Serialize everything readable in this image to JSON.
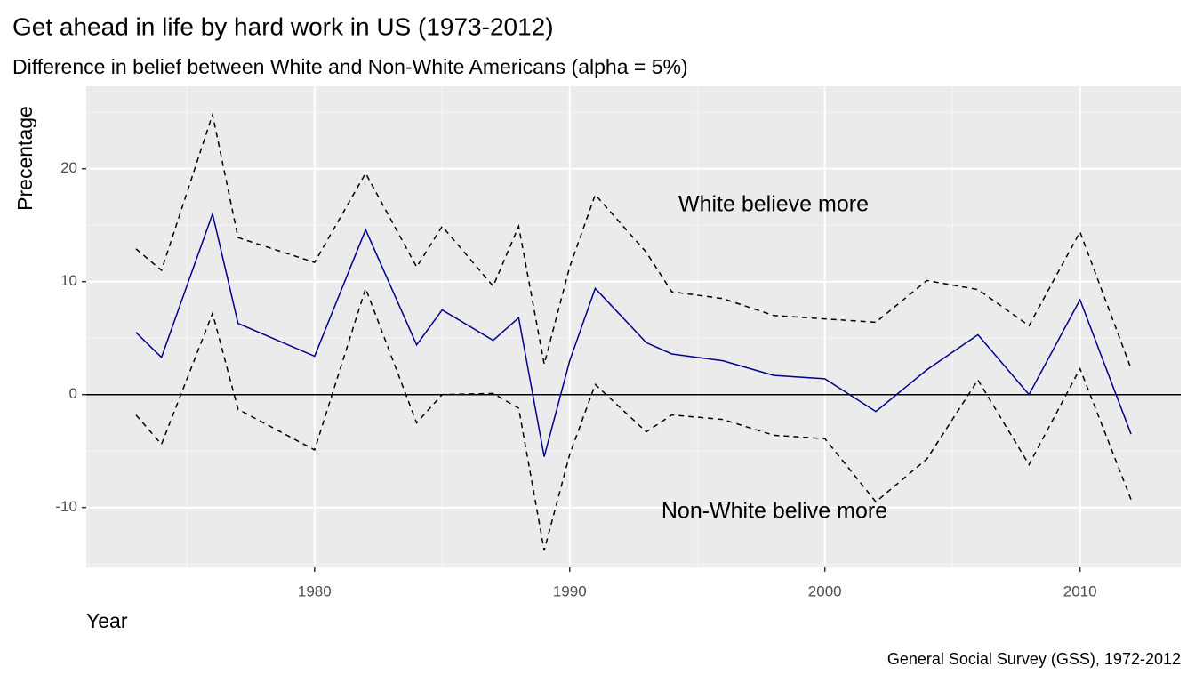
{
  "chart_data": {
    "type": "line",
    "title": "Get ahead in life by hard work in US (1973-2012)",
    "subtitle": "Difference in belief between White and Non-White Americans (alpha = 5%)",
    "x_label": "Year",
    "y_label": "Precentage",
    "caption": "General Social Survey (GSS), 1972-2012",
    "annotations": [
      "White believe more",
      "Non-White belive more"
    ],
    "x": [
      1973,
      1974,
      1976,
      1977,
      1980,
      1982,
      1984,
      1985,
      1987,
      1988,
      1989,
      1990,
      1991,
      1993,
      1994,
      1996,
      1998,
      2000,
      2002,
      2004,
      2006,
      2008,
      2010,
      2012
    ],
    "series": [
      {
        "color": "#00008b",
        "dash": "solid",
        "values": [
          5.5,
          3.3,
          16,
          6.3,
          3.4,
          14.6,
          4.4,
          7.5,
          4.8,
          6.8,
          -5.5,
          3,
          9.4,
          4.6,
          3.6,
          3.0,
          1.7,
          1.4,
          -1.5,
          2.2,
          5.3,
          0,
          8.4,
          -3.5
        ]
      },
      {
        "color": "#000000",
        "dash": "dashed",
        "values": [
          12.9,
          11,
          24.8,
          13.9,
          11.7,
          19.6,
          11.3,
          14.9,
          9.6,
          14.9,
          2.7,
          11.3,
          17.7,
          12.6,
          9.1,
          8.5,
          7.0,
          6.7,
          6.4,
          10.1,
          9.3,
          6.1,
          14.4,
          2.3
        ]
      },
      {
        "color": "#000000",
        "dash": "dashed",
        "values": [
          -1.8,
          -4.4,
          7.2,
          -1.3,
          -4.9,
          9.4,
          -2.5,
          0,
          0.1,
          -1.2,
          -13.8,
          -5.3,
          0.9,
          -3.3,
          -1.8,
          -2.2,
          -3.6,
          -3.9,
          -9.5,
          -5.7,
          1.3,
          -6.2,
          2.3,
          -9.3
        ]
      }
    ],
    "reference_line": 0,
    "xlim": [
      1971.05,
      2013.95
    ],
    "xticks": [
      1980,
      1990,
      2000,
      2010
    ],
    "ylim": [
      -15.3,
      27.3
    ],
    "yticks": [
      -10,
      0,
      10,
      20
    ],
    "grid": true
  }
}
